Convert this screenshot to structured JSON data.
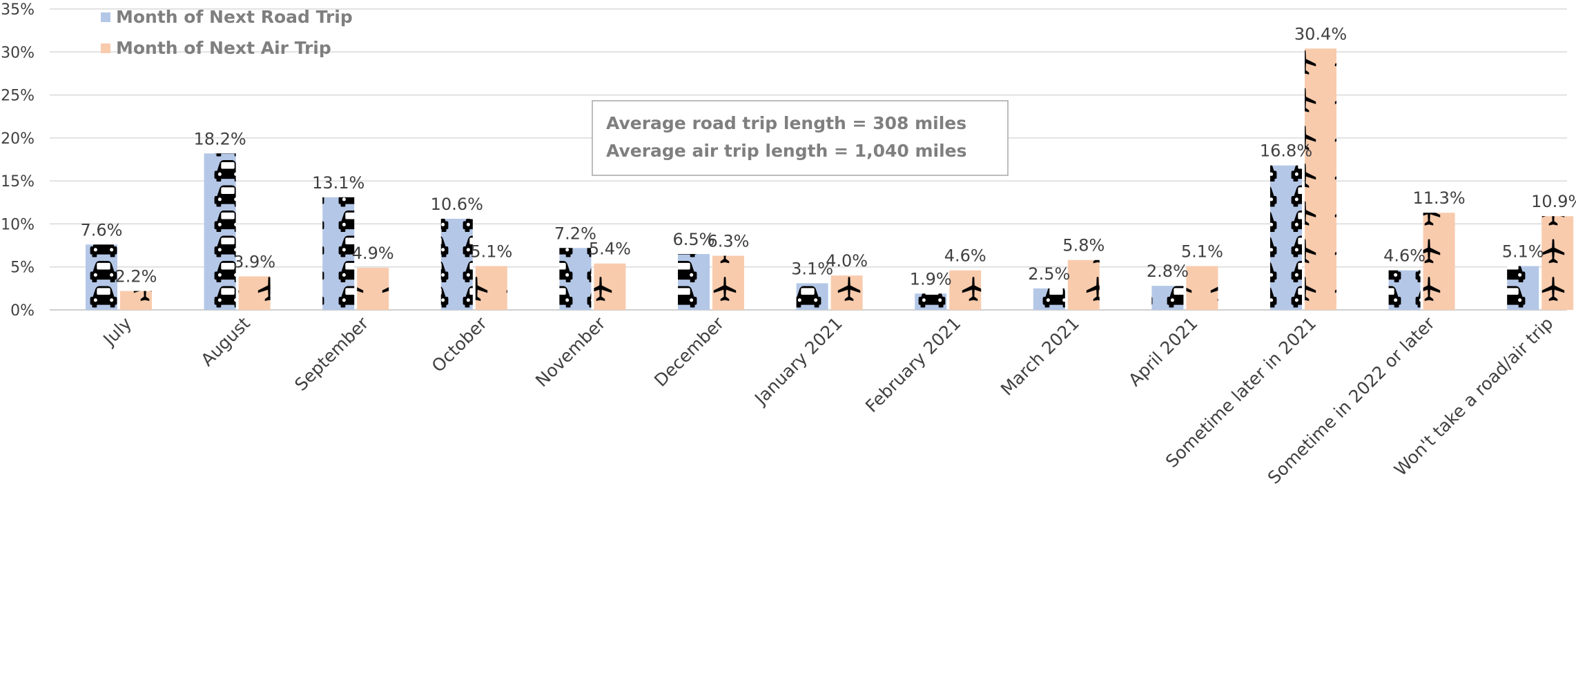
{
  "chart_data": {
    "type": "bar",
    "categories": [
      "July",
      "August",
      "September",
      "October",
      "November",
      "December",
      "January 2021",
      "February 2021",
      "March 2021",
      "April 2021",
      "Sometime later in 2021",
      "Sometime in 2022 or later",
      "Won't take a road/air trip"
    ],
    "series": [
      {
        "name": "Month of Next Road Trip",
        "values": [
          7.6,
          18.2,
          13.1,
          10.6,
          7.2,
          6.5,
          3.1,
          1.9,
          2.5,
          2.8,
          16.8,
          4.6,
          5.1
        ],
        "labels": [
          "7.6%",
          "18.2%",
          "13.1%",
          "10.6%",
          "7.2%",
          "6.5%",
          "3.1%",
          "1.9%",
          "2.5%",
          "2.8%",
          "16.8%",
          "4.6%",
          "5.1%"
        ],
        "color": "#b4c7e7",
        "icon": "car-icon"
      },
      {
        "name": "Month of Next Air Trip",
        "values": [
          2.2,
          3.9,
          4.9,
          5.1,
          5.4,
          6.3,
          4.0,
          4.6,
          5.8,
          5.1,
          30.4,
          11.3,
          10.9
        ],
        "labels": [
          "2.2%",
          "3.9%",
          "4.9%",
          "5.1%",
          "5.4%",
          "6.3%",
          "4.0%",
          "4.6%",
          "5.8%",
          "5.1%",
          "30.4%",
          "11.3%",
          "10.9%"
        ],
        "color": "#f8cbad",
        "icon": "airplane-icon"
      }
    ],
    "yticks": [
      "0%",
      "5%",
      "10%",
      "15%",
      "20%",
      "25%",
      "30%",
      "35%"
    ],
    "ylim": [
      0,
      35
    ],
    "grid": true,
    "legend_position": "top-left",
    "annotation": [
      "Average road trip length  = 308 miles",
      "Average air trip length = 1,040 miles"
    ]
  }
}
